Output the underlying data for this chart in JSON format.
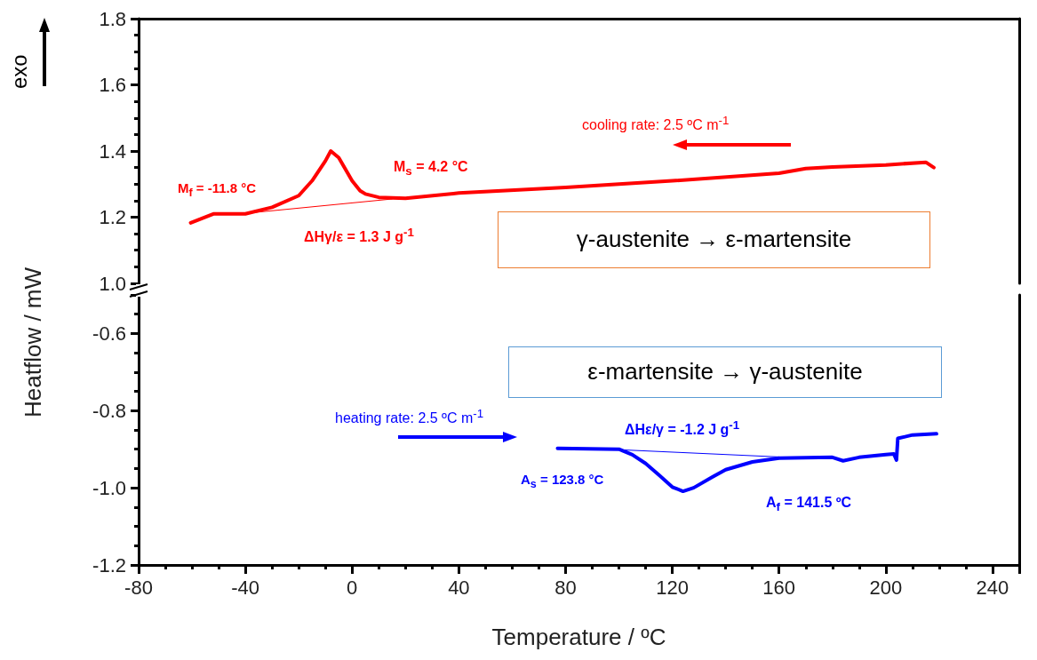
{
  "chart_data": [
    {
      "type": "line",
      "ylabel": "Heatflow / mW",
      "xlim": [
        -80,
        250
      ],
      "ylim": [
        1,
        1.8
      ],
      "yticks": [
        {
          "value": 1,
          "label": "1.0"
        },
        1.2,
        1.4,
        1.6,
        1.8
      ],
      "tick_labels": "y",
      "annotations": [
        "exo",
        "M$_{f}$ = -11.8 °C",
        "M$_{s}$ = 4.2 °C",
        "ΔHγ/ε = 1.3 J g$^{-1}$",
        "cooling rate: 2.5 ºC m$^{-1}$",
        "γ-austenite → ε-martensite"
      ],
      "series": [
        {
          "color": "#ff0000",
          "x": [
            -60.5,
            -52,
            -40,
            -30,
            -20,
            -15,
            -10,
            -8,
            -5,
            0,
            3,
            5,
            10,
            20,
            40,
            80,
            120,
            160,
            170,
            180,
            200,
            215,
            218
          ],
          "values": [
            1.183,
            1.21,
            1.21,
            1.23,
            1.265,
            1.31,
            1.37,
            1.4,
            1.38,
            1.31,
            1.28,
            1.27,
            1.26,
            1.257,
            1.273,
            1.29,
            1.31,
            1.333,
            1.347,
            1.352,
            1.358,
            1.366,
            1.35
          ]
        },
        {
          "color": "#ff0000",
          "x": [
            -42,
            15
          ],
          "values": [
            1.21,
            1.255
          ]
        }
      ]
    },
    {
      "type": "line",
      "xlabel": "Temperature / ºC",
      "xlim": [
        -80,
        250
      ],
      "xticks": [
        -80,
        -40,
        0,
        40,
        80,
        120,
        160,
        200,
        240
      ],
      "ylim": [
        -1.2,
        -0.5
      ],
      "yticks": [
        -1.2,
        {
          "value": -1,
          "label": "-1.0"
        },
        -0.8,
        -0.6
      ],
      "annotations": [
        "ε-martensite → γ-austenite",
        "heating rate: 2.5 ºC m$^{-1}$",
        "ΔHε/γ = -1.2 J g$^{-1}$",
        "A$_{s}$ = 123.8 °C",
        "A$_{f}$ = 141.5 ºC"
      ],
      "series": [
        {
          "color": "#0000ff",
          "x": [
            77,
            100,
            105,
            110,
            115,
            120,
            124,
            128,
            135,
            140,
            150,
            160,
            180,
            184,
            190,
            200,
            203,
            204,
            204.5,
            210,
            219
          ],
          "values": [
            -0.898,
            -0.9,
            -0.914,
            -0.937,
            -0.967,
            -0.998,
            -1.009,
            -1.0,
            -0.972,
            -0.953,
            -0.933,
            -0.923,
            -0.921,
            -0.93,
            -0.921,
            -0.914,
            -0.912,
            -0.928,
            -0.872,
            -0.863,
            -0.86
          ]
        },
        {
          "color": "#0000ff",
          "x": [
            96,
            160
          ],
          "values": [
            -0.9,
            -0.92
          ]
        }
      ]
    }
  ]
}
